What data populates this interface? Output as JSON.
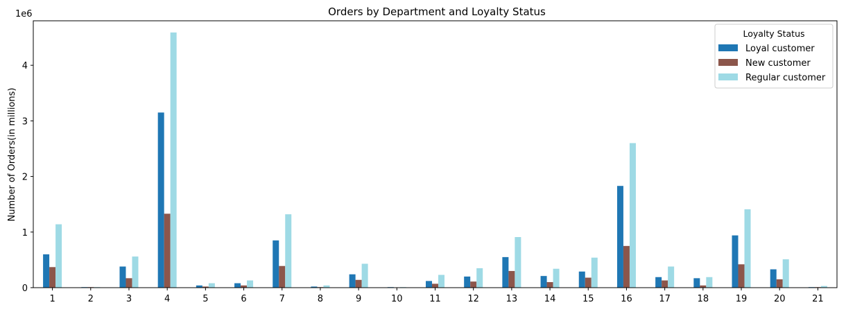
{
  "chart_data": {
    "type": "bar",
    "title": "Orders by Department and Loyalty Status",
    "xlabel": "",
    "ylabel": "Number of Orders(in millions)",
    "y_offset_text": "1e6",
    "ylim": [
      0,
      4.8
    ],
    "yticks": [
      0,
      1,
      2,
      3,
      4
    ],
    "grid": false,
    "legend": {
      "title": "Loyalty Status",
      "placement": "top-right"
    },
    "categories": [
      "1",
      "2",
      "3",
      "4",
      "5",
      "6",
      "7",
      "8",
      "9",
      "10",
      "11",
      "12",
      "13",
      "14",
      "15",
      "16",
      "17",
      "18",
      "19",
      "20",
      "21"
    ],
    "series": [
      {
        "name": "Loyal customer",
        "color": "#1f77b4",
        "values": [
          0.6,
          0.01,
          0.38,
          3.15,
          0.04,
          0.08,
          0.85,
          0.02,
          0.24,
          0.01,
          0.12,
          0.2,
          0.55,
          0.21,
          0.29,
          1.83,
          0.19,
          0.17,
          0.94,
          0.33,
          0.01
        ]
      },
      {
        "name": "New customer",
        "color": "#8c564b",
        "values": [
          0.37,
          0.01,
          0.17,
          1.33,
          0.02,
          0.04,
          0.39,
          0.01,
          0.14,
          0.005,
          0.07,
          0.11,
          0.3,
          0.1,
          0.18,
          0.75,
          0.13,
          0.04,
          0.42,
          0.15,
          0.01
        ]
      },
      {
        "name": "Regular customer",
        "color": "#9edae5",
        "values": [
          1.14,
          0.01,
          0.56,
          4.59,
          0.08,
          0.13,
          1.32,
          0.04,
          0.43,
          0.01,
          0.23,
          0.35,
          0.91,
          0.34,
          0.54,
          2.6,
          0.38,
          0.19,
          1.41,
          0.51,
          0.03
        ]
      }
    ]
  }
}
